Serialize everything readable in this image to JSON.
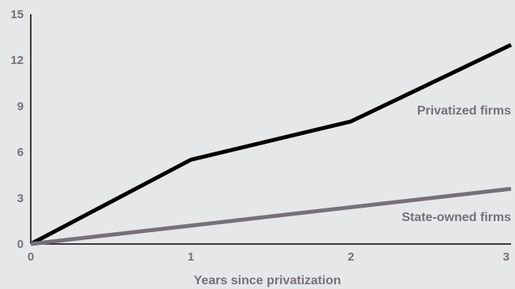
{
  "chart_data": {
    "type": "line",
    "xlabel": "Years since privatization",
    "ylabel": "",
    "x": [
      0,
      1,
      2,
      3
    ],
    "xlim": [
      0,
      3
    ],
    "ylim": [
      0,
      15
    ],
    "x_ticks": [
      "0",
      "1",
      "2",
      "3"
    ],
    "y_ticks": [
      "0",
      "3",
      "6",
      "9",
      "12",
      "15"
    ],
    "grid": false,
    "series": [
      {
        "name": "Privatized firms",
        "values": [
          0,
          5.5,
          8,
          13
        ],
        "color": "#000000"
      },
      {
        "name": "State-owned firms",
        "values": [
          0,
          1.2,
          2.4,
          3.6
        ],
        "color": "#77707a"
      }
    ],
    "colors": {
      "background": "#e6e7e8",
      "axis": "#000000",
      "text": "#77707a"
    }
  }
}
